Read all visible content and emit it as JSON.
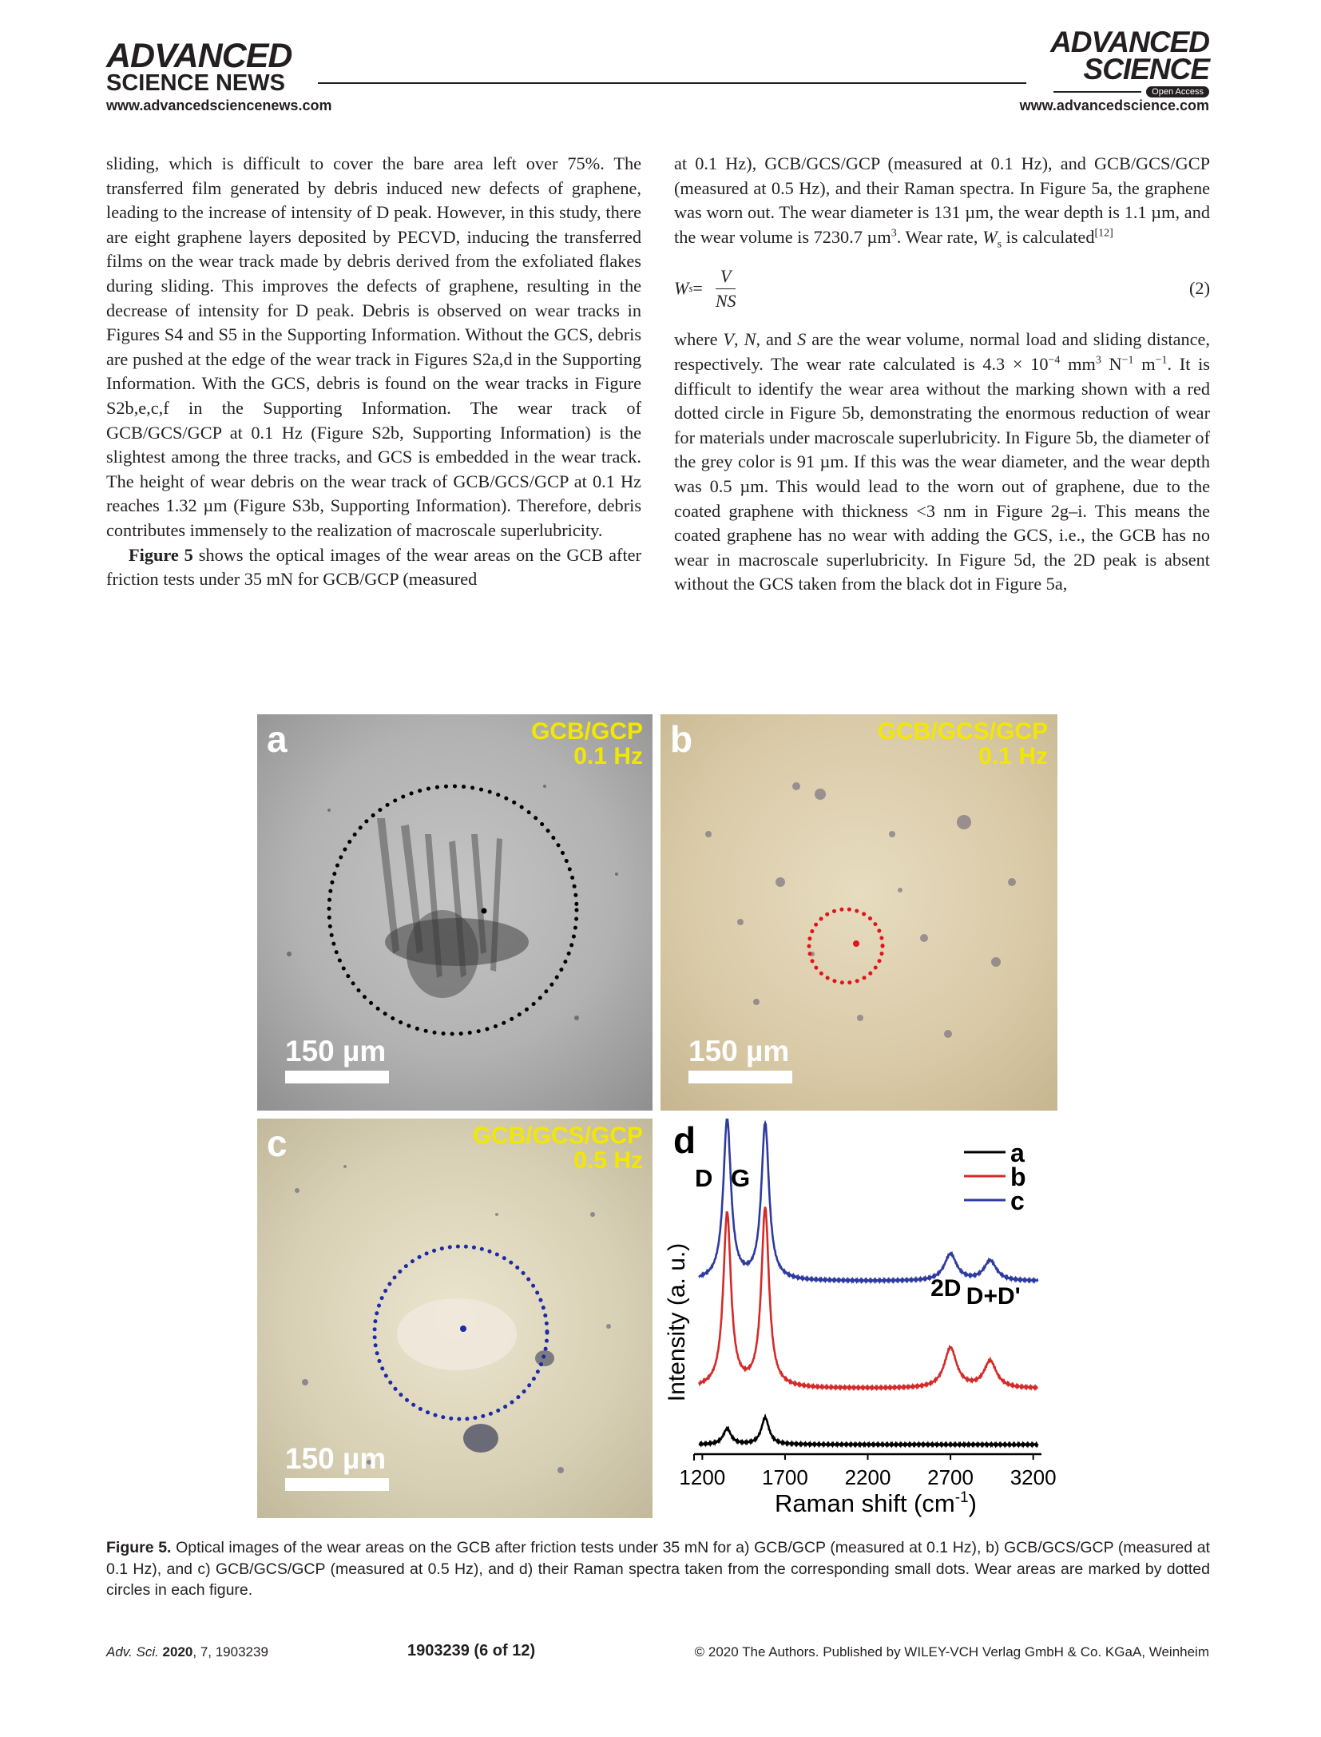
{
  "header": {
    "left_logo_line1": "ADVANCED",
    "left_logo_line2": "SCIENCE NEWS",
    "left_url": "www.advancedsciencenews.com",
    "right_logo_line1": "ADVANCED",
    "right_logo_line2": "SCIENCE",
    "right_badge": "Open Access",
    "right_url": "www.advancedscience.com"
  },
  "left_column": {
    "p1": "sliding, which is difficult to cover the bare area left over 75%. The transferred film generated by debris induced new defects of graphene, leading to the increase of intensity of D peak. However, in this study, there are eight graphene layers deposited by PECVD, inducing the transferred films on the wear track made by debris derived from the exfoliated flakes during sliding. This improves the defects of graphene, resulting in the decrease of intensity for D peak. Debris is observed on wear tracks in Figures S4 and S5 in the Supporting Information. Without the GCS, debris are pushed at the edge of the wear track in Figures S2a,d in the Supporting Information. With the GCS, debris is found on the wear tracks in Figure S2b,e,c,f in the Supporting Information. The wear track of GCB/GCS/GCP at 0.1 Hz (Figure S2b, Supporting Information) is the slightest among the three tracks, and GCS is embedded in the wear track. The height of wear debris on the wear track of GCB/GCS/GCP at 0.1 Hz reaches 1.32 µm (Figure S3b, Supporting Information). Therefore, debris contributes immensely to the realization of macroscale superlubricity.",
    "p2_bold": "Figure 5",
    "p2_rest": " shows the optical images of the wear areas on the GCB after friction tests under 35 mN for GCB/GCP (measured"
  },
  "right_column": {
    "p1_a": "at 0.1 Hz), GCB/GCS/GCP (measured at 0.1 Hz), and GCB/GCS/GCP (measured at 0.5 Hz), and their Raman spectra. In Figure 5a, the graphene was worn out. The wear diameter is 131 µm, the wear depth is 1.1 µm, and the wear volume is 7230.7 µm",
    "p1_sup": "3",
    "p1_b": ". Wear rate, ",
    "p1_var": "W",
    "p1_sub": "s",
    "p1_c": " is calculated",
    "p1_ref": "[12]",
    "eq_lhs": "W",
    "eq_lhs_sub": "s",
    "eq_equals": " =",
    "eq_num": "V",
    "eq_den": "NS",
    "eq_no": "(2)",
    "p2_a": "where ",
    "p2_v": "V",
    "p2_sep1": ", ",
    "p2_n": "N",
    "p2_sep2": ", and ",
    "p2_s": "S",
    "p2_b": " are the wear volume, normal load and sliding distance, respectively. The wear rate calculated is 4.3 × 10",
    "p2_sup1": "−4",
    "p2_c": " mm",
    "p2_sup2": "3",
    "p2_d": " N",
    "p2_sup3": "−1",
    "p2_e": " m",
    "p2_sup4": "−1",
    "p2_f": ". It is difficult to identify the wear area without the marking shown with a red dotted circle in Figure 5b, demonstrating the enormous reduction of wear for materials under macroscale superlubricity. In Figure 5b, the diameter of the grey color is 91 µm. If this was the wear diameter, and the wear depth was 0.5 µm. This would lead to the worn out of graphene, due to the coated graphene with thickness <3 nm in Figure 2g–i. This means the coated graphene has no wear with adding the GCS, i.e., the GCB has no wear in macroscale superlubricity. In Figure 5d, the 2D peak is absent without the GCS taken from the black dot in Figure 5a,"
  },
  "figure": {
    "panels": [
      {
        "label": "a",
        "title_line1": "GCB/GCP",
        "title_line2": "0.1 Hz",
        "scale": "150 µm",
        "circle_color": "#000000"
      },
      {
        "label": "b",
        "title_line1": "GCB/GCS/GCP",
        "title_line2": "0.1 Hz",
        "scale": "150 µm",
        "circle_color": "#e0141e"
      },
      {
        "label": "c",
        "title_line1": "GCB/GCS/GCP",
        "title_line2": "0.5 Hz",
        "scale": "150 µm",
        "circle_color": "#1e2aa8"
      }
    ],
    "panel_d_label": "d"
  },
  "chart_data": {
    "type": "line",
    "xlabel": "Raman shift (cm-1)",
    "xlabel_display": "Raman shift (cm",
    "xlabel_sup": "-1",
    "xlabel_close": ")",
    "ylabel": "Intensity (a. u.)",
    "xlim": [
      1150,
      3250
    ],
    "xticks": [
      1200,
      1700,
      2200,
      2700,
      3200
    ],
    "peak_labels": [
      "D",
      "G",
      "2D",
      "D+D'"
    ],
    "peak_positions": [
      1350,
      1580,
      2700,
      2940
    ],
    "legend_position": "top-right",
    "series": [
      {
        "name": "a",
        "color": "#000000",
        "baseline": 0.0,
        "peak_heights": [
          0.07,
          0.12,
          0.0,
          0.0
        ]
      },
      {
        "name": "b",
        "color": "#d42a2a",
        "baseline": 0.25,
        "peak_heights": [
          0.78,
          0.8,
          0.18,
          0.12
        ]
      },
      {
        "name": "c",
        "color": "#2e3b9e",
        "baseline": 0.73,
        "peak_heights": [
          0.72,
          0.7,
          0.12,
          0.09
        ]
      }
    ]
  },
  "caption": {
    "label": "Figure 5.",
    "text": " Optical images of the wear areas on the GCB after friction tests under 35 mN for a) GCB/GCP (measured at 0.1 Hz), b) GCB/GCS/GCP (measured at 0.1 Hz), and c) GCB/GCS/GCP (measured at 0.5 Hz), and d) their Raman spectra taken from the corresponding small dots. Wear areas are marked by dotted circles in each figure."
  },
  "footer": {
    "journal": "Adv. Sci.",
    "year": " 2020",
    "rest": ", 7, 1903239",
    "page": "1903239  (6 of 12)",
    "copyright": "© 2020 The Authors. Published by WILEY-VCH Verlag GmbH & Co. KGaA, Weinheim"
  }
}
